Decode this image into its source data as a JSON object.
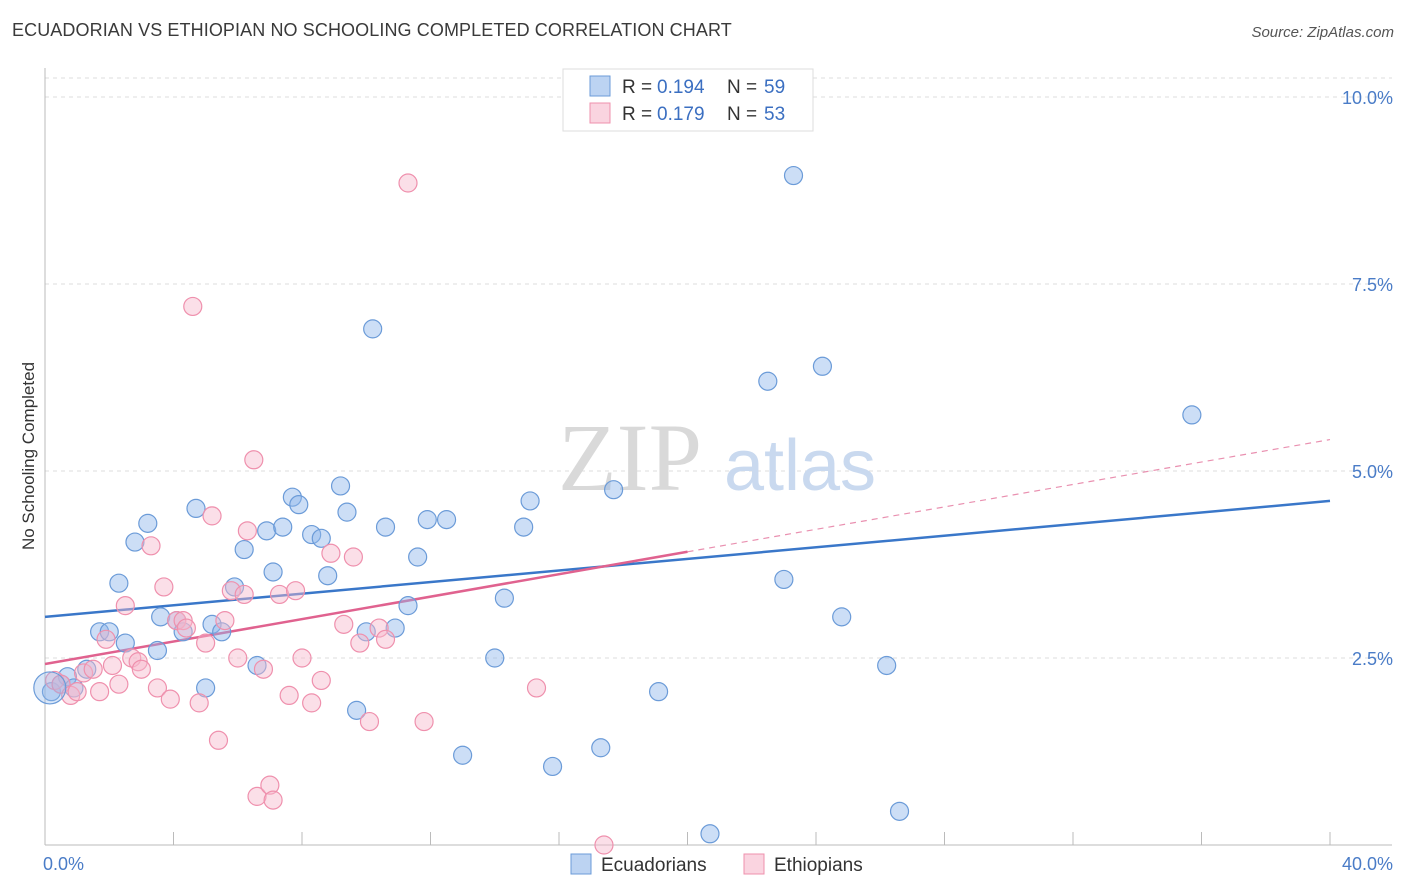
{
  "title": "ECUADORIAN VS ETHIOPIAN NO SCHOOLING COMPLETED CORRELATION CHART",
  "source": "Source: ZipAtlas.com",
  "watermark": {
    "zip": "ZIP",
    "atlas": "atlas"
  },
  "chart_data": {
    "type": "scatter",
    "ylabel": "No Schooling Completed",
    "xlim": [
      0,
      40
    ],
    "ylim": [
      0,
      10.5
    ],
    "x_tick_labels": [
      {
        "value": 0,
        "label": "0.0%"
      },
      {
        "value": 40,
        "label": "40.0%"
      }
    ],
    "y_tick_labels": [
      {
        "value": 2.5,
        "label": "2.5%"
      },
      {
        "value": 5.0,
        "label": "5.0%"
      },
      {
        "value": 7.5,
        "label": "7.5%"
      },
      {
        "value": 10.0,
        "label": "10.0%"
      }
    ],
    "grid": true,
    "legend_top": [
      {
        "series": "Ecuadorians",
        "r_label": "R =",
        "r_value": "0.194",
        "n_label": "N =",
        "n_value": "59"
      },
      {
        "series": "Ethiopians",
        "r_label": "R =",
        "r_value": "0.179",
        "n_label": "N =",
        "n_value": "53"
      }
    ],
    "series": [
      {
        "name": "Ecuadorians",
        "color": "#8fb6ea",
        "stroke": "#6b9bd8",
        "trend_color": "#3a77c9",
        "trend": {
          "x0": 0,
          "y0": 3.05,
          "x1": 40,
          "y1": 4.6
        },
        "points": [
          [
            0.2,
            2.05
          ],
          [
            0.5,
            2.15
          ],
          [
            0.7,
            2.25
          ],
          [
            0.9,
            2.1
          ],
          [
            1.3,
            2.35
          ],
          [
            1.7,
            2.85
          ],
          [
            2.0,
            2.85
          ],
          [
            2.3,
            3.5
          ],
          [
            2.5,
            2.7
          ],
          [
            2.8,
            4.05
          ],
          [
            3.2,
            4.3
          ],
          [
            3.5,
            2.6
          ],
          [
            3.6,
            3.05
          ],
          [
            4.1,
            3.0
          ],
          [
            4.3,
            2.85
          ],
          [
            4.7,
            4.5
          ],
          [
            5.0,
            2.1
          ],
          [
            5.2,
            2.95
          ],
          [
            5.5,
            2.85
          ],
          [
            5.9,
            3.45
          ],
          [
            6.2,
            3.95
          ],
          [
            6.6,
            2.4
          ],
          [
            6.9,
            4.2
          ],
          [
            7.1,
            3.65
          ],
          [
            7.4,
            4.25
          ],
          [
            7.7,
            4.65
          ],
          [
            7.9,
            4.55
          ],
          [
            8.3,
            4.15
          ],
          [
            8.6,
            4.1
          ],
          [
            8.8,
            3.6
          ],
          [
            9.2,
            4.8
          ],
          [
            9.4,
            4.45
          ],
          [
            9.7,
            1.8
          ],
          [
            10.0,
            2.85
          ],
          [
            10.2,
            6.9
          ],
          [
            10.6,
            4.25
          ],
          [
            10.9,
            2.9
          ],
          [
            11.3,
            3.2
          ],
          [
            11.6,
            3.85
          ],
          [
            11.9,
            4.35
          ],
          [
            12.5,
            4.35
          ],
          [
            13.0,
            1.2
          ],
          [
            14.0,
            2.5
          ],
          [
            14.3,
            3.3
          ],
          [
            14.9,
            4.25
          ],
          [
            15.1,
            4.6
          ],
          [
            15.8,
            1.05
          ],
          [
            17.3,
            1.3
          ],
          [
            17.7,
            4.75
          ],
          [
            19.1,
            2.05
          ],
          [
            20.7,
            0.15
          ],
          [
            22.5,
            6.2
          ],
          [
            23.0,
            3.55
          ],
          [
            23.3,
            8.95
          ],
          [
            24.2,
            6.4
          ],
          [
            24.8,
            3.05
          ],
          [
            26.2,
            2.4
          ],
          [
            26.6,
            0.45
          ],
          [
            35.7,
            5.75
          ]
        ]
      },
      {
        "name": "Ethiopians",
        "color": "#f6b8cc",
        "stroke": "#ef90ad",
        "trend_color": "#e0628f",
        "trend": {
          "x0": 0,
          "y0": 2.42,
          "x1": 20.0,
          "y1": 3.92
        },
        "trend_ext": {
          "x0": 20.0,
          "y0": 3.92,
          "x1": 40,
          "y1": 5.42
        },
        "points": [
          [
            0.3,
            2.2
          ],
          [
            0.5,
            2.15
          ],
          [
            0.8,
            2.0
          ],
          [
            1.0,
            2.05
          ],
          [
            1.2,
            2.3
          ],
          [
            1.5,
            2.35
          ],
          [
            1.7,
            2.05
          ],
          [
            1.9,
            2.75
          ],
          [
            2.1,
            2.4
          ],
          [
            2.3,
            2.15
          ],
          [
            2.5,
            3.2
          ],
          [
            2.7,
            2.5
          ],
          [
            2.9,
            2.45
          ],
          [
            3.0,
            2.35
          ],
          [
            3.3,
            4.0
          ],
          [
            3.5,
            2.1
          ],
          [
            3.7,
            3.45
          ],
          [
            3.9,
            1.95
          ],
          [
            4.1,
            3.0
          ],
          [
            4.3,
            3.0
          ],
          [
            4.4,
            2.9
          ],
          [
            4.6,
            7.2
          ],
          [
            4.8,
            1.9
          ],
          [
            5.0,
            2.7
          ],
          [
            5.2,
            4.4
          ],
          [
            5.4,
            1.4
          ],
          [
            5.6,
            3.0
          ],
          [
            5.8,
            3.4
          ],
          [
            6.0,
            2.5
          ],
          [
            6.2,
            3.35
          ],
          [
            6.3,
            4.2
          ],
          [
            6.5,
            5.15
          ],
          [
            6.6,
            0.65
          ],
          [
            6.8,
            2.35
          ],
          [
            7.0,
            0.8
          ],
          [
            7.1,
            0.6
          ],
          [
            7.3,
            3.35
          ],
          [
            7.6,
            2.0
          ],
          [
            7.8,
            3.4
          ],
          [
            8.0,
            2.5
          ],
          [
            8.3,
            1.9
          ],
          [
            8.6,
            2.2
          ],
          [
            8.9,
            3.9
          ],
          [
            9.3,
            2.95
          ],
          [
            9.6,
            3.85
          ],
          [
            9.8,
            2.7
          ],
          [
            10.1,
            1.65
          ],
          [
            10.4,
            2.9
          ],
          [
            10.6,
            2.75
          ],
          [
            11.3,
            8.85
          ],
          [
            11.8,
            1.65
          ],
          [
            15.3,
            2.1
          ],
          [
            17.4,
            0.0
          ]
        ]
      }
    ],
    "bottom_legend": [
      "Ecuadorians",
      "Ethiopians"
    ]
  }
}
